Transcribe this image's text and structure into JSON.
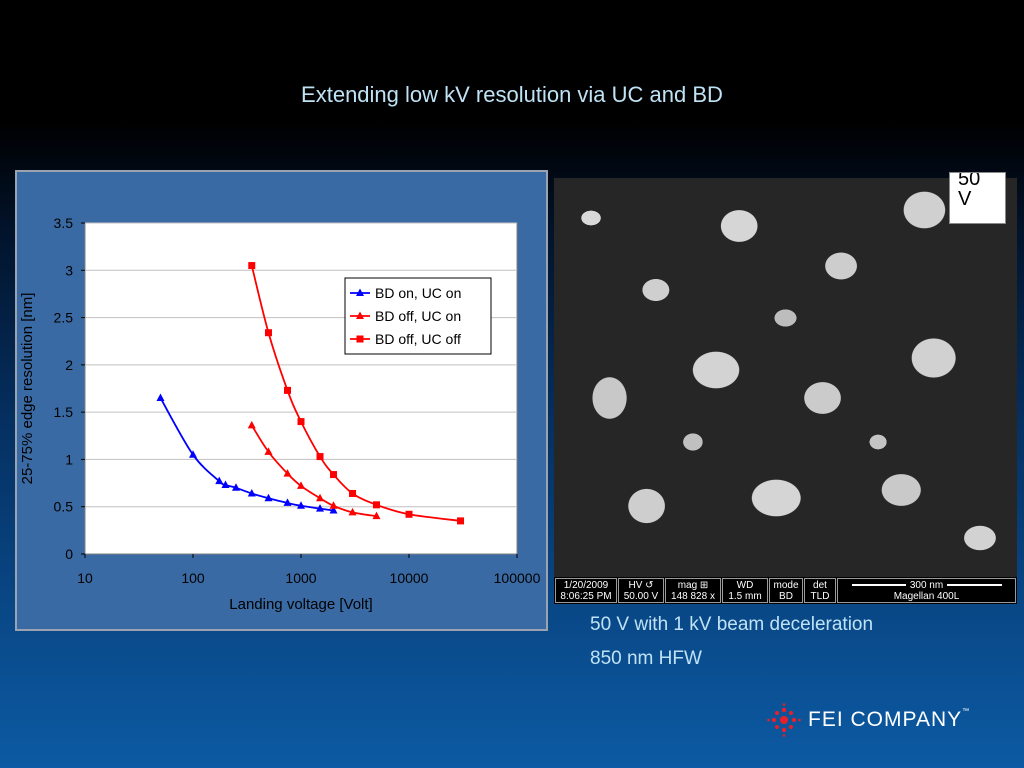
{
  "slide": {
    "title": "Extending low kV resolution via UC and BD"
  },
  "chart_data": {
    "type": "line",
    "x_scale": "log",
    "xlabel": "Landing voltage [Volt]",
    "ylabel": "25-75% edge resolution [nm]",
    "xlim": [
      10,
      100000
    ],
    "ylim": [
      0,
      3.5
    ],
    "x_ticks": [
      "10",
      "100",
      "1000",
      "10000",
      "100000"
    ],
    "y_ticks": [
      "0",
      "0.5",
      "1",
      "1.5",
      "2",
      "2.5",
      "3",
      "3.5"
    ],
    "grid": true,
    "legend": "top-right",
    "series": [
      {
        "name": "BD on, UC on",
        "color": "#0000ff",
        "marker": "triangle",
        "x": [
          50,
          100,
          175,
          200,
          250,
          350,
          500,
          750,
          1000,
          1500,
          2000
        ],
        "y": [
          1.65,
          1.05,
          0.77,
          0.73,
          0.7,
          0.64,
          0.59,
          0.54,
          0.51,
          0.48,
          0.46
        ]
      },
      {
        "name": "BD off, UC on",
        "color": "#ff0000",
        "marker": "triangle",
        "x": [
          350,
          500,
          750,
          1000,
          1500,
          2000,
          3000,
          5000
        ],
        "y": [
          1.36,
          1.08,
          0.85,
          0.72,
          0.59,
          0.51,
          0.44,
          0.4
        ]
      },
      {
        "name": "BD off, UC off",
        "color": "#ff0000",
        "marker": "square",
        "x": [
          350,
          500,
          750,
          1000,
          1500,
          2000,
          3000,
          5000,
          10000,
          30000
        ],
        "y": [
          3.05,
          2.34,
          1.73,
          1.4,
          1.03,
          0.84,
          0.64,
          0.52,
          0.42,
          0.35
        ]
      }
    ]
  },
  "sem": {
    "label_line1": "50",
    "label_line2": "V",
    "databar": [
      {
        "top": "1/20/2009",
        "bottom": "8:06:25 PM"
      },
      {
        "top": "HV ↺",
        "bottom": "50.00 V"
      },
      {
        "top": "mag ⊞",
        "bottom": "148 828 x"
      },
      {
        "top": "WD",
        "bottom": "1.5 mm"
      },
      {
        "top": "mode",
        "bottom": "BD"
      },
      {
        "top": "det",
        "bottom": "TLD"
      }
    ],
    "scale_text": "300 nm",
    "instrument": "Magellan 400L"
  },
  "captions": {
    "line1": "50 V with 1 kV beam deceleration",
    "line2": "850 nm HFW"
  },
  "logo": {
    "text": "FEI COMPANY",
    "tm": "™"
  }
}
